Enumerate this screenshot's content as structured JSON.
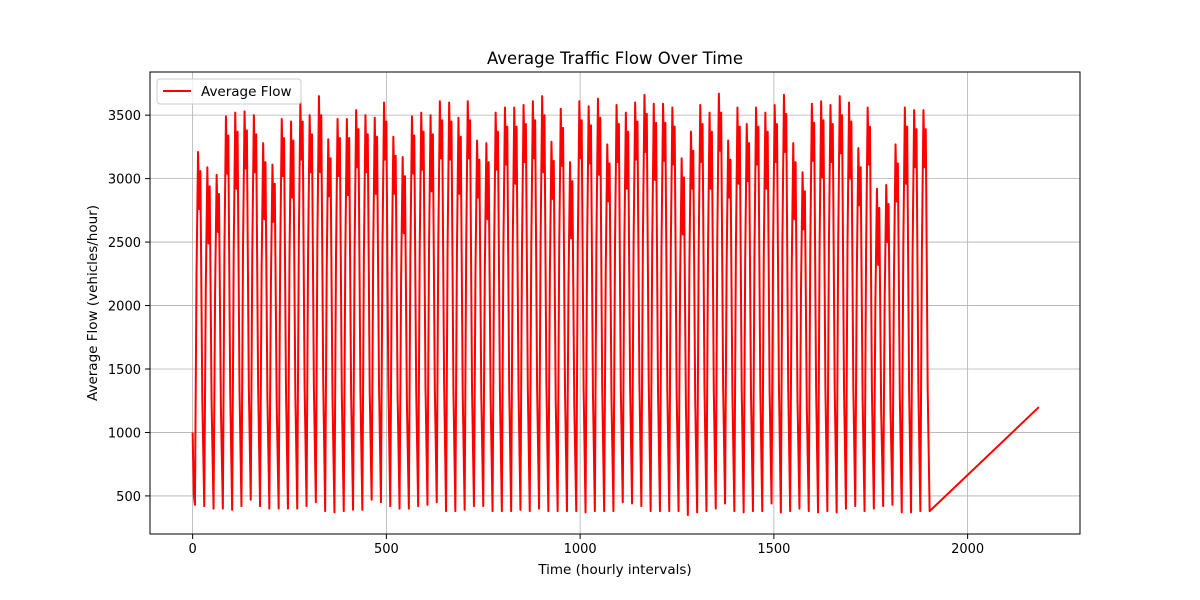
{
  "chart_data": {
    "type": "line",
    "title": "Average Traffic Flow Over Time",
    "xlabel": "Time (hourly intervals)",
    "ylabel": "Average Flow (vehicles/hour)",
    "xlim": [
      -110,
      2290
    ],
    "ylim": [
      200,
      3840
    ],
    "xticks": [
      0,
      500,
      1000,
      1500,
      2000
    ],
    "yticks": [
      500,
      1000,
      1500,
      2000,
      2500,
      3000,
      3500
    ],
    "grid": true,
    "legend_position": "top-left",
    "series": [
      {
        "name": "Average Flow",
        "color": "#ff0000",
        "period": 24,
        "n_points": 2185,
        "start_value": 1000,
        "end_value": 1200,
        "cycle_peaks": [
          3210,
          3090,
          3030,
          3490,
          3520,
          3530,
          3500,
          3280,
          3110,
          3470,
          3450,
          3600,
          3500,
          3650,
          3310,
          3470,
          3470,
          3540,
          3500,
          3480,
          3600,
          3330,
          3170,
          3490,
          3520,
          3500,
          3610,
          3600,
          3480,
          3610,
          3300,
          3280,
          3520,
          3560,
          3560,
          3580,
          3610,
          3650,
          3290,
          3550,
          3130,
          3610,
          3570,
          3630,
          3270,
          3580,
          3520,
          3600,
          3660,
          3590,
          3590,
          3560,
          3160,
          3370,
          3580,
          3520,
          3670,
          3300,
          3560,
          3430,
          3560,
          3520,
          3580,
          3660,
          3280,
          3050,
          3590,
          3610,
          3580,
          3650,
          3600,
          3240,
          3560,
          2920,
          2950,
          3270,
          3560,
          3540,
          3540
        ],
        "cycle_troughs": [
          430,
          420,
          400,
          400,
          390,
          420,
          470,
          420,
          400,
          400,
          400,
          400,
          420,
          450,
          380,
          370,
          380,
          390,
          390,
          470,
          450,
          420,
          400,
          400,
          420,
          430,
          450,
          380,
          380,
          390,
          420,
          420,
          380,
          380,
          380,
          390,
          380,
          400,
          380,
          380,
          380,
          380,
          370,
          380,
          380,
          380,
          450,
          440,
          420,
          380,
          380,
          380,
          380,
          350,
          370,
          380,
          400,
          440,
          380,
          370,
          380,
          380,
          440,
          370,
          380,
          400,
          380,
          370,
          380,
          370,
          400,
          420,
          380,
          400,
          420,
          430,
          370,
          370,
          380
        ]
      }
    ]
  }
}
